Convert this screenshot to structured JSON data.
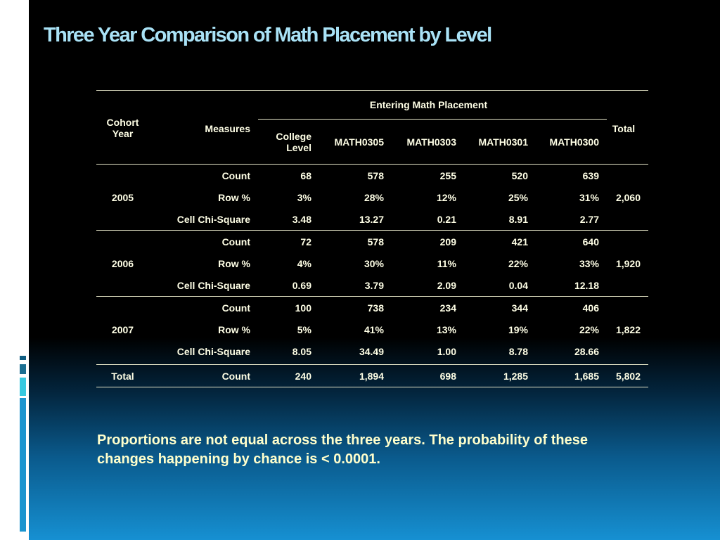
{
  "slide": {
    "title": "Three Year Comparison of Math Placement by Level",
    "colors": {
      "title": "#a9e2f6",
      "table_text": "#ffffe6",
      "caption": "#ffffcc",
      "background_top": "#000000",
      "background_bottom": "#1690d2"
    }
  },
  "table": {
    "headers": {
      "cohort_year": "Cohort Year",
      "measures": "Measures",
      "group": "Entering Math Placement",
      "total": "Total",
      "columns": [
        "College Level",
        "MATH0305",
        "MATH0303",
        "MATH0301",
        "MATH0300"
      ]
    },
    "years": [
      {
        "year": "2005",
        "total": "2,060",
        "rows": [
          {
            "measure": "Count",
            "values": [
              "68",
              "578",
              "255",
              "520",
              "639"
            ]
          },
          {
            "measure": "Row %",
            "values": [
              "3%",
              "28%",
              "12%",
              "25%",
              "31%"
            ]
          },
          {
            "measure": "Cell Chi-Square",
            "values": [
              "3.48",
              "13.27",
              "0.21",
              "8.91",
              "2.77"
            ]
          }
        ]
      },
      {
        "year": "2006",
        "total": "1,920",
        "rows": [
          {
            "measure": "Count",
            "values": [
              "72",
              "578",
              "209",
              "421",
              "640"
            ]
          },
          {
            "measure": "Row %",
            "values": [
              "4%",
              "30%",
              "11%",
              "22%",
              "33%"
            ]
          },
          {
            "measure": "Cell Chi-Square",
            "values": [
              "0.69",
              "3.79",
              "2.09",
              "0.04",
              "12.18"
            ]
          }
        ]
      },
      {
        "year": "2007",
        "total": "1,822",
        "rows": [
          {
            "measure": "Count",
            "values": [
              "100",
              "738",
              "234",
              "344",
              "406"
            ]
          },
          {
            "measure": "Row %",
            "values": [
              "5%",
              "41%",
              "13%",
              "19%",
              "22%"
            ]
          },
          {
            "measure": "Cell Chi-Square",
            "values": [
              "8.05",
              "34.49",
              "1.00",
              "8.78",
              "28.66"
            ]
          }
        ]
      }
    ],
    "total_row": {
      "label": "Total",
      "measure": "Count",
      "values": [
        "240",
        "1,894",
        "698",
        "1,285",
        "1,685"
      ],
      "total": "5,802"
    }
  },
  "caption": "Proportions are not equal across the three years.  The probability of these changes happening by chance is < 0.0001."
}
